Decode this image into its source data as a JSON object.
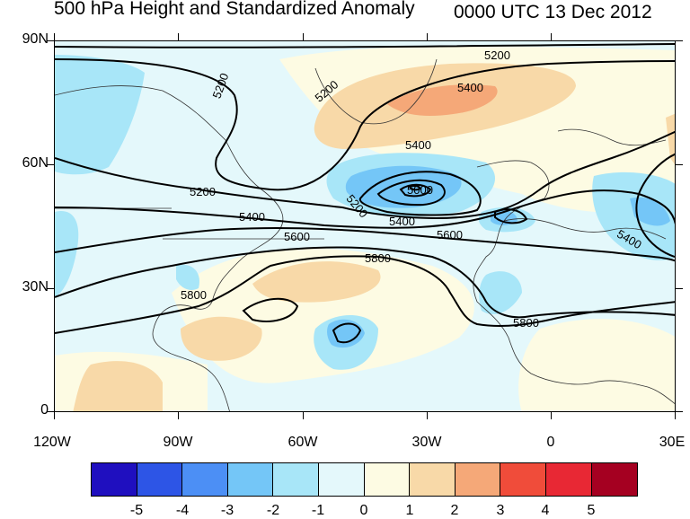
{
  "title": "500 hPa Height and Standardized Anomaly",
  "datetime": "0000 UTC 13 Dec 2012",
  "y_axis_labels": [
    "90N",
    "60N",
    "30N",
    "0"
  ],
  "x_axis_labels": [
    "120W",
    "90W",
    "60W",
    "30W",
    "0",
    "30E"
  ],
  "colorbar": {
    "colors": [
      "#1f0fbf",
      "#2d55e6",
      "#4c8ff5",
      "#74c6f7",
      "#a8e6f8",
      "#e4f8fb",
      "#fdfbe3",
      "#f8d9a8",
      "#f5a878",
      "#f04c3a",
      "#e82834",
      "#a50021"
    ],
    "labels": [
      "-5",
      "-4",
      "-3",
      "-2",
      "-1",
      "0",
      "1",
      "2",
      "3",
      "4",
      "5"
    ]
  },
  "contour_labels": [
    "5200",
    "5200",
    "5400",
    "5200",
    "5400",
    "5000",
    "5200",
    "5400",
    "5600",
    "5600",
    "5400",
    "5800",
    "5800",
    "5800",
    "5200",
    "5400"
  ]
}
